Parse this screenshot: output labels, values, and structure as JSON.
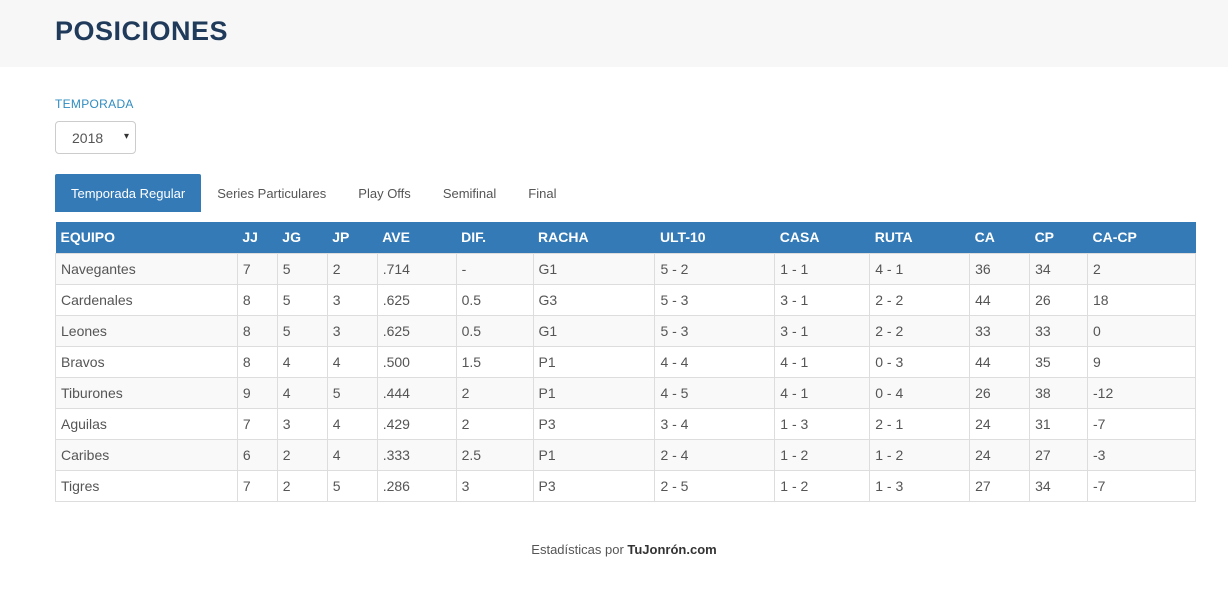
{
  "header": {
    "title": "POSICIONES"
  },
  "filters": {
    "season_label": "TEMPORADA",
    "season_value": "2018",
    "caret": "▾"
  },
  "tabs": [
    {
      "label": "Temporada Regular",
      "active": true
    },
    {
      "label": "Series Particulares",
      "active": false
    },
    {
      "label": "Play Offs",
      "active": false
    },
    {
      "label": "Semifinal",
      "active": false
    },
    {
      "label": "Final",
      "active": false
    }
  ],
  "table": {
    "columns": [
      "EQUIPO",
      "JJ",
      "JG",
      "JP",
      "AVE",
      "DIF.",
      "RACHA",
      "ULT-10",
      "CASA",
      "RUTA",
      "CA",
      "CP",
      "CA-CP"
    ],
    "rows": [
      [
        "Navegantes",
        "7",
        "5",
        "2",
        ".714",
        "-",
        "G1",
        "5 - 2",
        "1 - 1",
        "4 - 1",
        "36",
        "34",
        "2"
      ],
      [
        "Cardenales",
        "8",
        "5",
        "3",
        ".625",
        "0.5",
        "G3",
        "5 - 3",
        "3 - 1",
        "2 - 2",
        "44",
        "26",
        "18"
      ],
      [
        "Leones",
        "8",
        "5",
        "3",
        ".625",
        "0.5",
        "G1",
        "5 - 3",
        "3 - 1",
        "2 - 2",
        "33",
        "33",
        "0"
      ],
      [
        "Bravos",
        "8",
        "4",
        "4",
        ".500",
        "1.5",
        "P1",
        "4 - 4",
        "4 - 1",
        "0 - 3",
        "44",
        "35",
        "9"
      ],
      [
        "Tiburones",
        "9",
        "4",
        "5",
        ".444",
        "2",
        "P1",
        "4 - 5",
        "4 - 1",
        "0 - 4",
        "26",
        "38",
        "-12"
      ],
      [
        "Aguilas",
        "7",
        "3",
        "4",
        ".429",
        "2",
        "P3",
        "3 - 4",
        "1 - 3",
        "2 - 1",
        "24",
        "31",
        "-7"
      ],
      [
        "Caribes",
        "6",
        "2",
        "4",
        ".333",
        "2.5",
        "P1",
        "2 - 4",
        "1 - 2",
        "1 - 2",
        "24",
        "27",
        "-3"
      ],
      [
        "Tigres",
        "7",
        "2",
        "5",
        ".286",
        "3",
        "P3",
        "2 - 5",
        "1 - 2",
        "1 - 3",
        "27",
        "34",
        "-7"
      ]
    ]
  },
  "footer": {
    "prefix": "Estadísticas por ",
    "brand": "TuJonrón.com"
  },
  "colors": {
    "accent": "#337ab7",
    "title": "#1f3a5a",
    "label": "#2f8cc0"
  }
}
